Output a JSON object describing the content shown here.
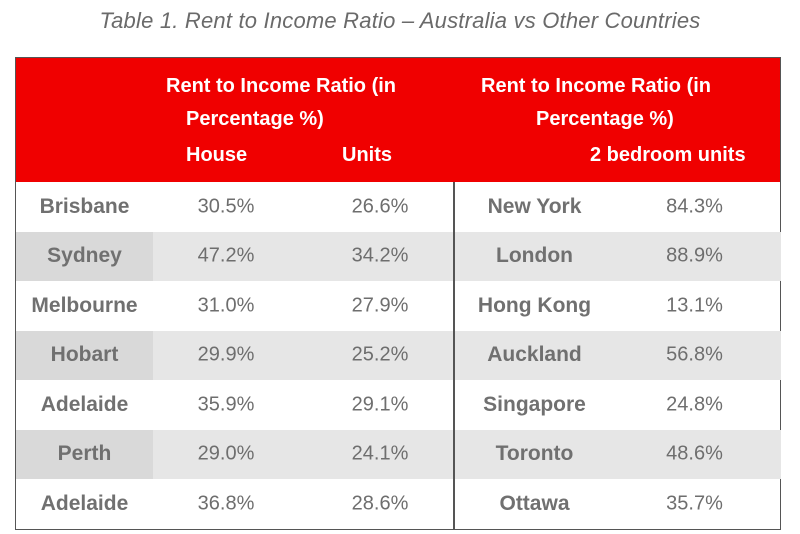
{
  "caption": "Table 1. Rent to Income Ratio – Australia vs Other Countries",
  "header": {
    "left_group_line1": "Rent to Income Ratio (in",
    "left_group_line2": "Percentage %)",
    "right_group_line1": "Rent to Income Ratio (in",
    "right_group_line2": "Percentage %)",
    "house": "House",
    "units": "Units",
    "two_bedroom_units": "2 bedroom units"
  },
  "rows": [
    {
      "city": "Brisbane",
      "house": "30.5%",
      "units": "26.6%",
      "country_city": "New York",
      "two_bed": "84.3%"
    },
    {
      "city": "Sydney",
      "house": "47.2%",
      "units": "34.2%",
      "country_city": "London",
      "two_bed": "88.9%"
    },
    {
      "city": "Melbourne",
      "house": "31.0%",
      "units": "27.9%",
      "country_city": "Hong Kong",
      "two_bed": "13.1%"
    },
    {
      "city": "Hobart",
      "house": "29.9%",
      "units": "25.2%",
      "country_city": "Auckland",
      "two_bed": "56.8%"
    },
    {
      "city": "Adelaide",
      "house": "35.9%",
      "units": "29.1%",
      "country_city": "Singapore",
      "two_bed": "24.8%"
    },
    {
      "city": "Perth",
      "house": "29.0%",
      "units": "24.1%",
      "country_city": "Toronto",
      "two_bed": "48.6%"
    },
    {
      "city": "Adelaide",
      "house": "36.8%",
      "units": "28.6%",
      "country_city": "Ottawa",
      "two_bed": "35.7%"
    }
  ],
  "colors": {
    "header_bg": "#f00000",
    "header_text": "#ffffff",
    "shade": "#e6e6e6",
    "body_text": "#6e6e6e"
  }
}
